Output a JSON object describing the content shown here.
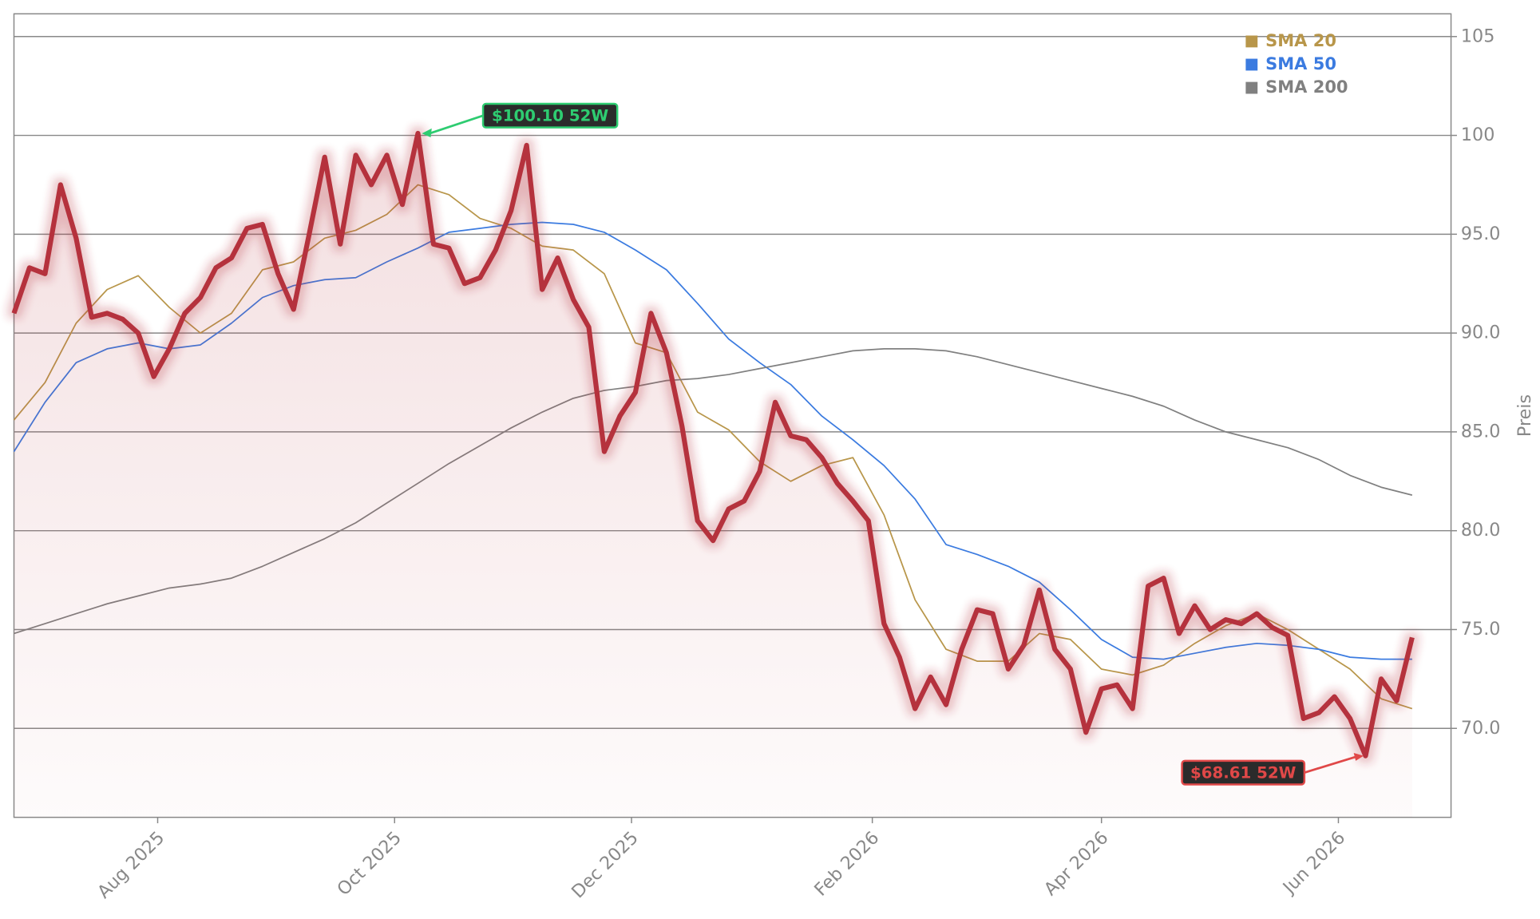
{
  "chart_data": {
    "type": "line",
    "ylabel": "Preis",
    "ylim": [
      65.5,
      106.15
    ],
    "yticks": [
      {
        "value": 70,
        "label": "70.0"
      },
      {
        "value": 75,
        "label": "75.0"
      },
      {
        "value": 80,
        "label": "80.0"
      },
      {
        "value": 85,
        "label": "85.0"
      },
      {
        "value": 90,
        "label": "90.0"
      },
      {
        "value": 95,
        "label": "95.0"
      },
      100,
      105
    ],
    "xlim": [
      "2025-06-25",
      "2026-06-30"
    ],
    "xticks": [
      {
        "value": "2025-08-01",
        "label": "Aug 2025"
      },
      {
        "value": "2025-10-01",
        "label": "Oct 2025"
      },
      {
        "value": "2025-12-01",
        "label": "Dec 2025"
      },
      {
        "value": "2026-02-01",
        "label": "Feb 2026"
      },
      {
        "value": "2026-04-01",
        "label": "Apr 2026"
      },
      {
        "value": "2026-06-01",
        "label": "Jun 2026"
      }
    ],
    "grid": true,
    "legend": "upper right",
    "series": [
      {
        "color": "#b5323c",
        "x": [
          "2025-06-25",
          "2025-06-29",
          "2025-07-03",
          "2025-07-07",
          "2025-07-11",
          "2025-07-15",
          "2025-07-19",
          "2025-07-23",
          "2025-07-27",
          "2025-07-31",
          "2025-08-04",
          "2025-08-08",
          "2025-08-12",
          "2025-08-16",
          "2025-08-20",
          "2025-08-24",
          "2025-08-28",
          "2025-09-01",
          "2025-09-05",
          "2025-09-09",
          "2025-09-13",
          "2025-09-17",
          "2025-09-21",
          "2025-09-25",
          "2025-09-29",
          "2025-10-03",
          "2025-10-07",
          "2025-10-11",
          "2025-10-15",
          "2025-10-19",
          "2025-10-23",
          "2025-10-27",
          "2025-10-31",
          "2025-11-04",
          "2025-11-08",
          "2025-11-12",
          "2025-11-16",
          "2025-11-20",
          "2025-11-24",
          "2025-11-28",
          "2025-12-02",
          "2025-12-06",
          "2025-12-10",
          "2025-12-14",
          "2025-12-18",
          "2025-12-22",
          "2025-12-26",
          "2025-12-30",
          "2026-01-03",
          "2026-01-07",
          "2026-01-11",
          "2026-01-15",
          "2026-01-19",
          "2026-01-23",
          "2026-01-27",
          "2026-01-31",
          "2026-02-04",
          "2026-02-08",
          "2026-02-12",
          "2026-02-16",
          "2026-02-20",
          "2026-02-24",
          "2026-02-28",
          "2026-03-04",
          "2026-03-08",
          "2026-03-12",
          "2026-03-16",
          "2026-03-20",
          "2026-03-24",
          "2026-03-28",
          "2026-04-01",
          "2026-04-05",
          "2026-04-09",
          "2026-04-13",
          "2026-04-17",
          "2026-04-21",
          "2026-04-25",
          "2026-04-29",
          "2026-05-03",
          "2026-05-07",
          "2026-05-11",
          "2026-05-15",
          "2026-05-19",
          "2026-05-23",
          "2026-05-27",
          "2026-05-31",
          "2026-06-04",
          "2026-06-08",
          "2026-06-12",
          "2026-06-16",
          "2026-06-20"
        ],
        "values": [
          91,
          93.3,
          93,
          97.5,
          94.8,
          90.8,
          91,
          90.7,
          90,
          87.8,
          89.2,
          91,
          91.8,
          93.3,
          93.8,
          95.3,
          95.5,
          93,
          91.2,
          95,
          98.9,
          94.5,
          99,
          97.5,
          99,
          96.5,
          100.1,
          94.5,
          94.3,
          92.5,
          92.8,
          94.2,
          96.2,
          99.5,
          92.2,
          93.8,
          91.7,
          90.3,
          84,
          85.8,
          87,
          91,
          89,
          85.3,
          80.5,
          79.5,
          81.1,
          81.5,
          83,
          86.5,
          84.8,
          84.6,
          83.7,
          82.4,
          81.5,
          80.5,
          75.3,
          73.6,
          71,
          72.6,
          71.2,
          74,
          76,
          75.8,
          73,
          74.2,
          77,
          74,
          73,
          69.8,
          72,
          72.2,
          71,
          77.2,
          77.6,
          74.8,
          76.2,
          75,
          75.5,
          75.3,
          75.8,
          75.1,
          74.7,
          70.5,
          70.8,
          71.6,
          70.5,
          68.61,
          72.5,
          71.4,
          74.6
        ]
      },
      {
        "name": "SMA 20",
        "color": "#b8964a",
        "x": [
          "2025-06-25",
          "2025-07-03",
          "2025-07-11",
          "2025-07-19",
          "2025-07-27",
          "2025-08-04",
          "2025-08-12",
          "2025-08-20",
          "2025-08-28",
          "2025-09-05",
          "2025-09-13",
          "2025-09-21",
          "2025-09-29",
          "2025-10-07",
          "2025-10-15",
          "2025-10-23",
          "2025-10-31",
          "2025-11-08",
          "2025-11-16",
          "2025-11-24",
          "2025-12-02",
          "2025-12-10",
          "2025-12-18",
          "2025-12-26",
          "2026-01-03",
          "2026-01-11",
          "2026-01-19",
          "2026-01-27",
          "2026-02-04",
          "2026-02-12",
          "2026-02-20",
          "2026-02-28",
          "2026-03-08",
          "2026-03-16",
          "2026-03-24",
          "2026-04-01",
          "2026-04-09",
          "2026-04-17",
          "2026-04-25",
          "2026-05-03",
          "2026-05-11",
          "2026-05-19",
          "2026-05-27",
          "2026-06-04",
          "2026-06-12",
          "2026-06-20"
        ],
        "values": [
          85.6,
          87.5,
          90.5,
          92.2,
          92.9,
          91.3,
          90,
          91,
          93.2,
          93.6,
          94.8,
          95.2,
          96,
          97.5,
          97,
          95.8,
          95.3,
          94.4,
          94.2,
          93,
          89.5,
          89,
          86,
          85.1,
          83.5,
          82.5,
          83.3,
          83.7,
          80.8,
          76.5,
          74,
          73.4,
          73.4,
          74.8,
          74.5,
          73,
          72.7,
          73.2,
          74.3,
          75.2,
          75.8,
          75,
          74,
          73,
          71.5,
          71
        ]
      },
      {
        "name": "SMA 50",
        "color": "#3b7be0",
        "x": [
          "2025-06-25",
          "2025-07-03",
          "2025-07-11",
          "2025-07-19",
          "2025-07-27",
          "2025-08-04",
          "2025-08-12",
          "2025-08-20",
          "2025-08-28",
          "2025-09-05",
          "2025-09-13",
          "2025-09-21",
          "2025-09-29",
          "2025-10-07",
          "2025-10-15",
          "2025-10-23",
          "2025-10-31",
          "2025-11-08",
          "2025-11-16",
          "2025-11-24",
          "2025-12-02",
          "2025-12-10",
          "2025-12-18",
          "2025-12-26",
          "2026-01-03",
          "2026-01-11",
          "2026-01-19",
          "2026-01-27",
          "2026-02-04",
          "2026-02-12",
          "2026-02-20",
          "2026-02-28",
          "2026-03-08",
          "2026-03-16",
          "2026-03-24",
          "2026-04-01",
          "2026-04-09",
          "2026-04-17",
          "2026-04-25",
          "2026-05-03",
          "2026-05-11",
          "2026-05-19",
          "2026-05-27",
          "2026-06-04",
          "2026-06-12",
          "2026-06-20"
        ],
        "values": [
          84,
          86.5,
          88.5,
          89.2,
          89.5,
          89.2,
          89.4,
          90.5,
          91.8,
          92.4,
          92.7,
          92.8,
          93.6,
          94.3,
          95.1,
          95.3,
          95.5,
          95.6,
          95.5,
          95.1,
          94.2,
          93.2,
          91.5,
          89.7,
          88.5,
          87.4,
          85.8,
          84.6,
          83.3,
          81.6,
          79.3,
          78.8,
          78.2,
          77.4,
          76,
          74.5,
          73.6,
          73.5,
          73.8,
          74.1,
          74.3,
          74.2,
          74,
          73.6,
          73.5,
          73.5
        ]
      },
      {
        "name": "SMA 200",
        "color": "#808080",
        "x": [
          "2025-06-25",
          "2025-07-03",
          "2025-07-11",
          "2025-07-19",
          "2025-07-27",
          "2025-08-04",
          "2025-08-12",
          "2025-08-20",
          "2025-08-28",
          "2025-09-05",
          "2025-09-13",
          "2025-09-21",
          "2025-09-29",
          "2025-10-07",
          "2025-10-15",
          "2025-10-23",
          "2025-10-31",
          "2025-11-08",
          "2025-11-16",
          "2025-11-24",
          "2025-12-02",
          "2025-12-10",
          "2025-12-18",
          "2025-12-26",
          "2026-01-03",
          "2026-01-11",
          "2026-01-19",
          "2026-01-27",
          "2026-02-04",
          "2026-02-12",
          "2026-02-20",
          "2026-02-28",
          "2026-03-08",
          "2026-03-16",
          "2026-03-24",
          "2026-04-01",
          "2026-04-09",
          "2026-04-17",
          "2026-04-25",
          "2026-05-03",
          "2026-05-11",
          "2026-05-19",
          "2026-05-27",
          "2026-06-04",
          "2026-06-12",
          "2026-06-20"
        ],
        "values": [
          74.8,
          75.3,
          75.8,
          76.3,
          76.7,
          77.1,
          77.3,
          77.6,
          78.2,
          78.9,
          79.6,
          80.4,
          81.4,
          82.4,
          83.4,
          84.3,
          85.2,
          86,
          86.7,
          87.1,
          87.3,
          87.6,
          87.7,
          87.9,
          88.2,
          88.5,
          88.8,
          89.1,
          89.2,
          89.2,
          89.1,
          88.8,
          88.4,
          88,
          87.6,
          87.2,
          86.8,
          86.3,
          85.6,
          85,
          84.6,
          84.2,
          83.6,
          82.8,
          82.2,
          81.8
        ]
      }
    ],
    "annotations": [
      {
        "text": "$100.10 52W",
        "x": "2025-10-07",
        "value": 100.1,
        "color": "#2ecc71"
      },
      {
        "text": "$68.61 52W",
        "x": "2026-06-08",
        "value": 68.61,
        "color": "#e04848"
      }
    ]
  }
}
